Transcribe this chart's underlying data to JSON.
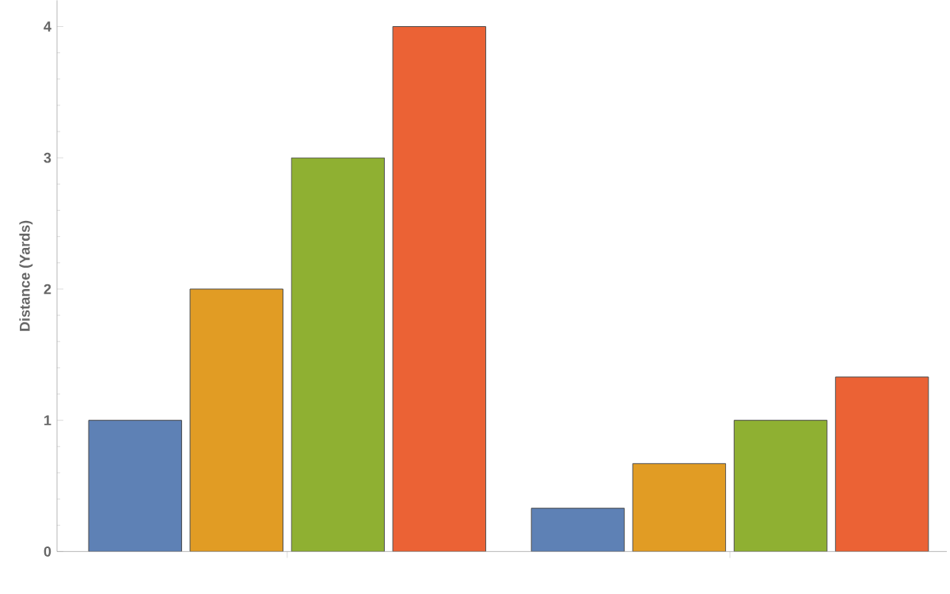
{
  "chart_data": {
    "type": "bar",
    "ylabel": "Distance  (Yards)",
    "categories": [
      null,
      null
    ],
    "series": [
      {
        "color": "#5e81b5",
        "values": [
          1,
          0.33
        ]
      },
      {
        "color": "#e19c24",
        "values": [
          2,
          0.67
        ]
      },
      {
        "color": "#8fb032",
        "values": [
          3,
          1
        ]
      },
      {
        "color": "#eb6235",
        "values": [
          4,
          1.33
        ]
      }
    ],
    "ylim": [
      0,
      4.2
    ],
    "yticks": [
      0,
      1,
      2,
      3,
      4
    ],
    "grid": false
  }
}
